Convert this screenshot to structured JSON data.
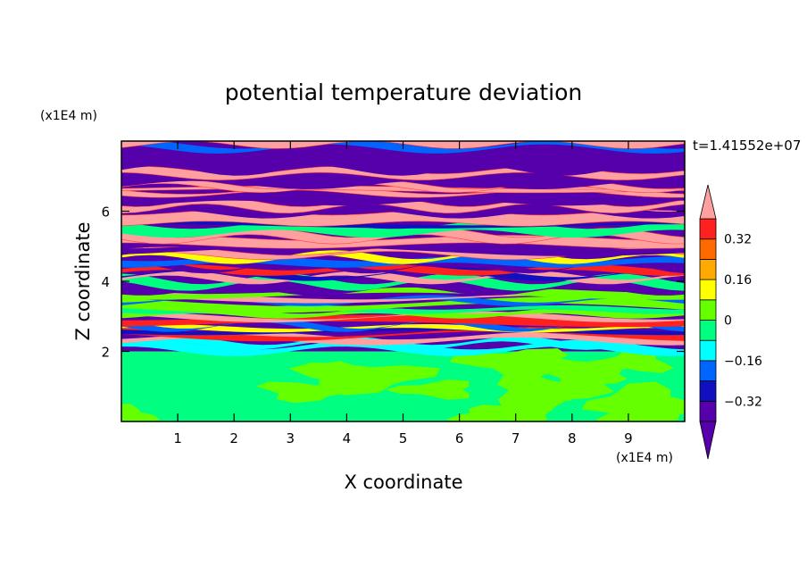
{
  "chart_data": {
    "type": "heatmap",
    "title": "potential temperature deviation",
    "xlabel": "X coordinate",
    "ylabel": "Z coordinate",
    "x_unit": "(x1E4 m)",
    "y_unit": "(x1E4 m)",
    "time_label": "t=1.41552e+07",
    "xlim": [
      0,
      10
    ],
    "ylim": [
      0,
      8
    ],
    "x_ticks": [
      "1",
      "2",
      "3",
      "4",
      "5",
      "6",
      "7",
      "8",
      "9"
    ],
    "y_ticks": [
      "2",
      "4",
      "6"
    ],
    "colorbar": {
      "levels": [
        -0.4,
        -0.32,
        -0.24,
        -0.16,
        -0.08,
        0,
        0.08,
        0.16,
        0.24,
        0.32,
        0.4
      ],
      "tick_labels": [
        "0.32",
        "0.16",
        "0",
        "−0.16",
        "−0.32"
      ],
      "tick_values": [
        0.32,
        0.16,
        0,
        -0.16,
        -0.32
      ],
      "colors": [
        "#5500aa",
        "#1010c0",
        "#0064ff",
        "#00ffff",
        "#00ff80",
        "#66ff00",
        "#ffff00",
        "#ffaa00",
        "#ff6a00",
        "#ff2020"
      ],
      "under_color": "#5500aa",
      "over_color": "#ffa0a0"
    },
    "layers": {
      "lower_region_z": [
        0,
        2
      ],
      "lower_colors": [
        "#00ff80",
        "#66ff00"
      ],
      "upper_region_z": [
        2,
        8
      ],
      "upper_colors": [
        "#5500aa",
        "#ffa0a0",
        "#1010c0",
        "#00ffff",
        "#ffff00",
        "#66ff00",
        "#ff2020"
      ]
    }
  }
}
